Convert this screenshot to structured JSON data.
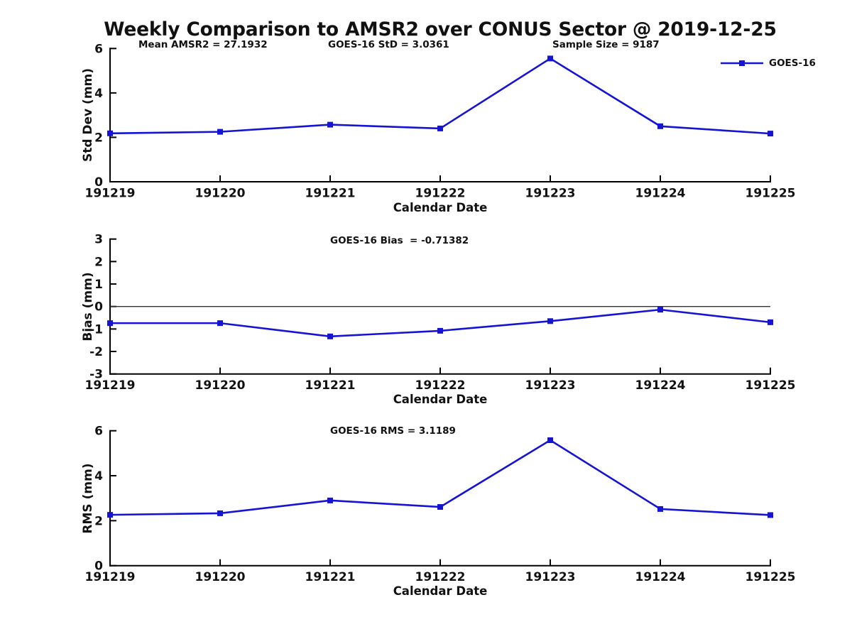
{
  "title": "Weekly Comparison to AMSR2 over CONUS Sector @ 2019-12-25",
  "legend": {
    "label": "GOES-16"
  },
  "colors": {
    "series_blue": "#1414d2",
    "axis_black": "#000000",
    "zero_line": "#333333"
  },
  "chart_data": [
    {
      "type": "line",
      "id": "std-dev",
      "ylabel": "Std Dev (mm)",
      "xlabel": "Calendar Date",
      "ylim": [
        0,
        6
      ],
      "yticks": [
        0,
        2,
        4,
        6
      ],
      "grid": false,
      "legend_position": "top-right",
      "categories": [
        "191219",
        "191220",
        "191221",
        "191222",
        "191223",
        "191224",
        "191225"
      ],
      "series": [
        {
          "name": "GOES-16",
          "values": [
            2.18,
            2.25,
            2.57,
            2.4,
            5.55,
            2.5,
            2.17
          ]
        }
      ],
      "annotations": [
        "Mean AMSR2 = 27.1932",
        "GOES-16 StD = 3.0361",
        "Sample Size = 9187"
      ]
    },
    {
      "type": "line",
      "id": "bias",
      "ylabel": "Bias (mm)",
      "xlabel": "Calendar Date",
      "ylim": [
        -3,
        3
      ],
      "yticks": [
        3,
        2,
        1,
        0,
        -1,
        -2,
        -3
      ],
      "grid": false,
      "zero_line": true,
      "categories": [
        "191219",
        "191220",
        "191221",
        "191222",
        "191223",
        "191224",
        "191225"
      ],
      "series": [
        {
          "name": "GOES-16",
          "values": [
            -0.74,
            -0.74,
            -1.33,
            -1.08,
            -0.65,
            -0.14,
            -0.7
          ]
        }
      ],
      "annotations": [
        "GOES-16 Bias  = -0.71382"
      ]
    },
    {
      "type": "line",
      "id": "rms",
      "ylabel": "RMS (mm)",
      "xlabel": "Calendar Date",
      "ylim": [
        0,
        6
      ],
      "yticks": [
        0,
        2,
        4,
        6
      ],
      "grid": false,
      "categories": [
        "191219",
        "191220",
        "191221",
        "191222",
        "191223",
        "191224",
        "191225"
      ],
      "series": [
        {
          "name": "GOES-16",
          "values": [
            2.26,
            2.33,
            2.9,
            2.61,
            5.58,
            2.52,
            2.25
          ]
        }
      ],
      "annotations": [
        "GOES-16 RMS = 3.1189"
      ]
    }
  ]
}
